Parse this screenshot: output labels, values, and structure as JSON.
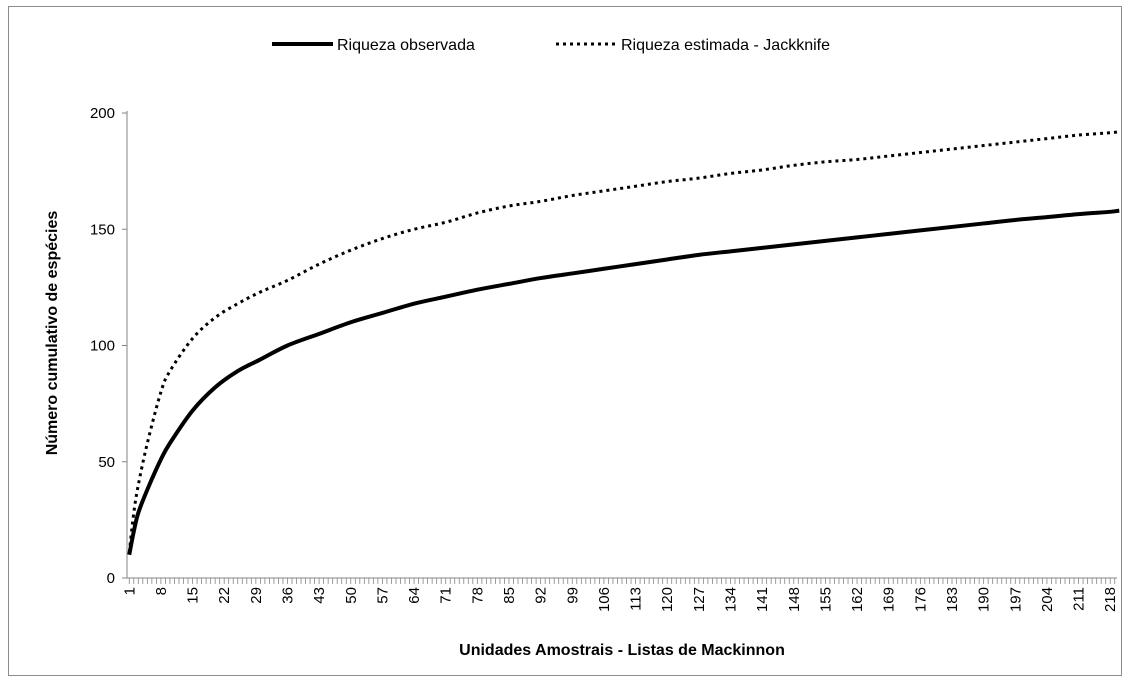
{
  "chart_data": {
    "type": "line",
    "title": "",
    "xlabel": "Unidades Amostrais - Listas de Mackinnon",
    "ylabel": "Número cumulativo de espécies",
    "ylim": [
      0,
      200
    ],
    "yticks": [
      0,
      50,
      100,
      150,
      200
    ],
    "xlim": [
      1,
      220
    ],
    "xtick_labels": [
      1,
      8,
      15,
      22,
      29,
      36,
      43,
      50,
      57,
      64,
      71,
      78,
      85,
      92,
      99,
      106,
      113,
      120,
      127,
      134,
      141,
      148,
      155,
      162,
      169,
      176,
      183,
      190,
      197,
      204,
      211,
      218
    ],
    "grid": false,
    "legend_position": "top-center",
    "series": [
      {
        "name": "Riqueza observada",
        "style": "solid",
        "color": "#000000",
        "x": [
          1,
          2,
          3,
          5,
          8,
          10,
          15,
          20,
          25,
          30,
          36,
          43,
          50,
          57,
          64,
          71,
          78,
          85,
          92,
          99,
          106,
          113,
          120,
          127,
          134,
          141,
          148,
          155,
          162,
          169,
          176,
          183,
          190,
          197,
          204,
          211,
          218,
          220
        ],
        "y": [
          10,
          20,
          28,
          38,
          51,
          58,
          72,
          82,
          89,
          94,
          100,
          105,
          110,
          114,
          118,
          121,
          124,
          126.5,
          129,
          131,
          133,
          135,
          137,
          139,
          140.5,
          142,
          143.5,
          145,
          146.5,
          148,
          149.5,
          151,
          152.5,
          154,
          155.2,
          156.5,
          157.5,
          158
        ]
      },
      {
        "name": "Riqueza estimada - Jackknife",
        "style": "dotted",
        "color": "#000000",
        "x": [
          1,
          2,
          3,
          5,
          8,
          10,
          15,
          20,
          25,
          30,
          36,
          43,
          50,
          57,
          64,
          71,
          78,
          85,
          92,
          99,
          106,
          113,
          120,
          127,
          134,
          141,
          148,
          155,
          162,
          169,
          176,
          183,
          190,
          197,
          204,
          211,
          218,
          220
        ],
        "y": [
          11,
          28,
          40,
          58,
          80,
          89,
          103,
          112,
          118,
          123,
          128,
          135,
          141,
          146,
          150,
          153,
          157,
          160,
          162,
          164.5,
          166.5,
          168.5,
          170.5,
          172,
          174,
          175.5,
          177.5,
          179,
          180,
          181.5,
          183,
          184.5,
          186,
          187.5,
          189,
          190.5,
          191.5,
          192
        ]
      }
    ]
  }
}
